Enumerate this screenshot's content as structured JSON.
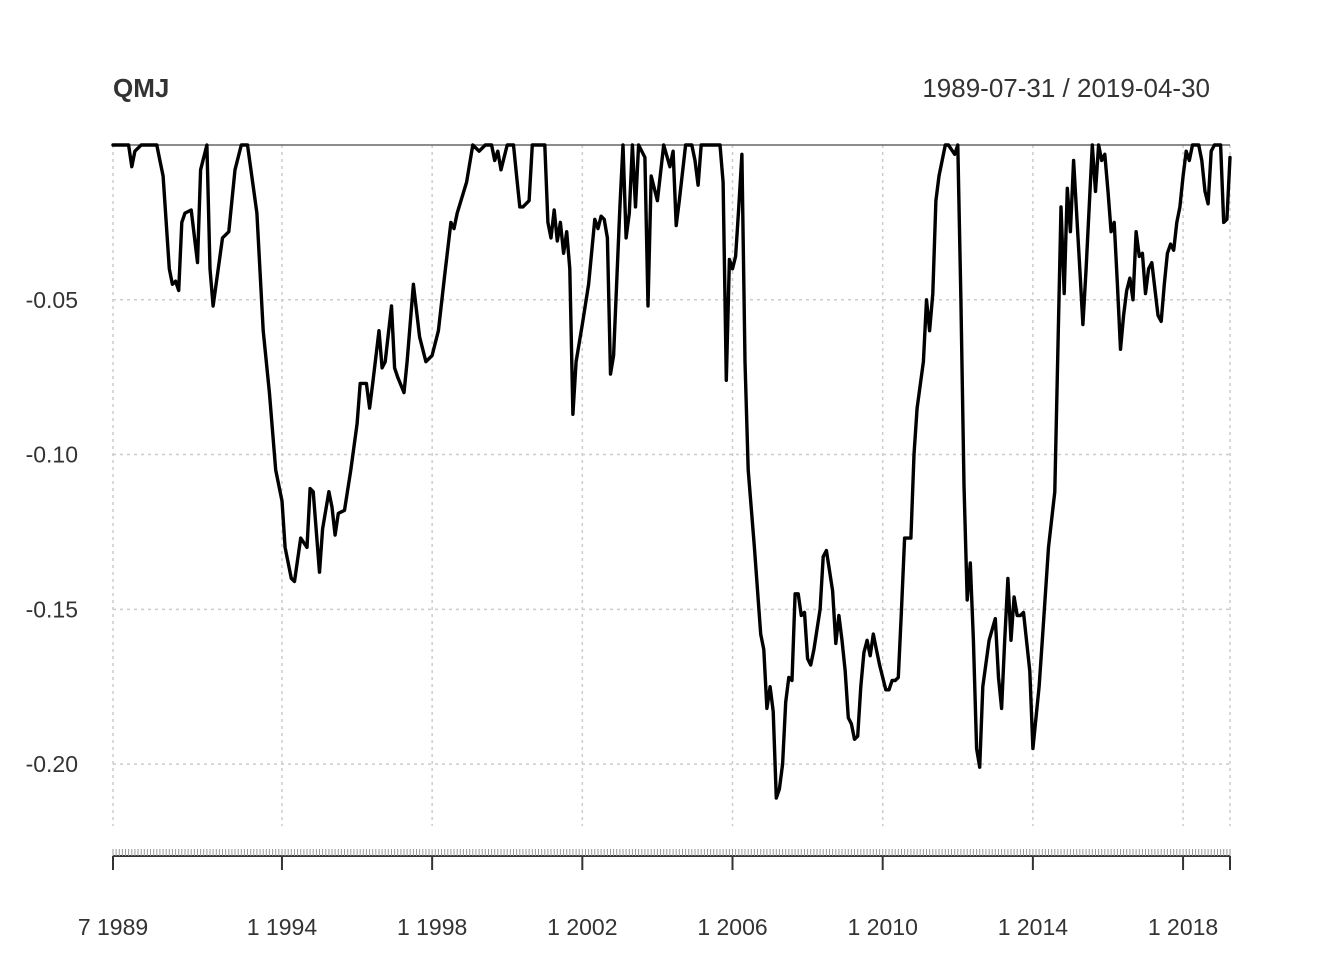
{
  "chart_data": {
    "type": "line",
    "title": "QMJ",
    "date_range_label": "1989-07-31 / 2019-04-30",
    "xlabel": "",
    "ylabel": "",
    "start_date": "1989-07-31",
    "end_date": "2019-04-30",
    "frequency": "monthly",
    "ylim": [
      -0.22,
      0
    ],
    "y_ticks": [
      -0.05,
      -0.1,
      -0.15,
      -0.2
    ],
    "y_tick_labels": [
      "-0.05",
      "-0.10",
      "-0.15",
      "-0.20"
    ],
    "x_ticks": [
      "1989-07-31",
      "1994-01-31",
      "1998-01-31",
      "2002-01-31",
      "2006-01-31",
      "2010-01-31",
      "2014-01-31",
      "2018-01-31"
    ],
    "x_tick_labels": [
      "7 1989",
      "1 1994",
      "1 1998",
      "1 2002",
      "1 2006",
      "1 2010",
      "1 2014",
      "1 2018"
    ],
    "grid": true,
    "series": [
      {
        "color": "#000000",
        "points": [
          [
            "1989-07",
            0.0
          ],
          [
            "1989-12",
            0.0
          ],
          [
            "1990-01",
            -0.007
          ],
          [
            "1990-02",
            -0.002
          ],
          [
            "1990-04",
            0.0
          ],
          [
            "1990-09",
            0.0
          ],
          [
            "1990-10",
            -0.005
          ],
          [
            "1990-11",
            -0.01
          ],
          [
            "1991-01",
            -0.04
          ],
          [
            "1991-02",
            -0.045
          ],
          [
            "1991-03",
            -0.044
          ],
          [
            "1991-04",
            -0.047
          ],
          [
            "1991-05",
            -0.025
          ],
          [
            "1991-06",
            -0.022
          ],
          [
            "1991-08",
            -0.021
          ],
          [
            "1991-10",
            -0.038
          ],
          [
            "1991-11",
            -0.008
          ],
          [
            "1992-01",
            0.0
          ],
          [
            "1992-02",
            -0.04
          ],
          [
            "1992-03",
            -0.052
          ],
          [
            "1992-06",
            -0.03
          ],
          [
            "1992-08",
            -0.028
          ],
          [
            "1992-10",
            -0.008
          ],
          [
            "1992-12",
            0.0
          ],
          [
            "1993-02",
            0.0
          ],
          [
            "1993-05",
            -0.022
          ],
          [
            "1993-07",
            -0.06
          ],
          [
            "1993-09",
            -0.08
          ],
          [
            "1993-11",
            -0.105
          ],
          [
            "1994-01",
            -0.115
          ],
          [
            "1994-02",
            -0.13
          ],
          [
            "1994-04",
            -0.14
          ],
          [
            "1994-05",
            -0.141
          ],
          [
            "1994-07",
            -0.127
          ],
          [
            "1994-09",
            -0.13
          ],
          [
            "1994-10",
            -0.111
          ],
          [
            "1994-11",
            -0.112
          ],
          [
            "1995-01",
            -0.138
          ],
          [
            "1995-02",
            -0.124
          ],
          [
            "1995-04",
            -0.112
          ],
          [
            "1995-05",
            -0.117
          ],
          [
            "1995-06",
            -0.126
          ],
          [
            "1995-07",
            -0.119
          ],
          [
            "1995-09",
            -0.118
          ],
          [
            "1995-11",
            -0.105
          ],
          [
            "1996-01",
            -0.09
          ],
          [
            "1996-02",
            -0.077
          ],
          [
            "1996-04",
            -0.077
          ],
          [
            "1996-05",
            -0.085
          ],
          [
            "1996-06",
            -0.077
          ],
          [
            "1996-08",
            -0.06
          ],
          [
            "1996-09",
            -0.072
          ],
          [
            "1996-10",
            -0.07
          ],
          [
            "1996-12",
            -0.052
          ],
          [
            "1997-01",
            -0.072
          ],
          [
            "1997-02",
            -0.075
          ],
          [
            "1997-04",
            -0.08
          ],
          [
            "1997-05",
            -0.07
          ],
          [
            "1997-07",
            -0.045
          ],
          [
            "1997-09",
            -0.062
          ],
          [
            "1997-11",
            -0.07
          ],
          [
            "1998-01",
            -0.068
          ],
          [
            "1998-03",
            -0.06
          ],
          [
            "1998-05",
            -0.042
          ],
          [
            "1998-07",
            -0.025
          ],
          [
            "1998-08",
            -0.027
          ],
          [
            "1998-09",
            -0.022
          ],
          [
            "1998-12",
            -0.012
          ],
          [
            "1999-02",
            0.0
          ],
          [
            "1999-04",
            -0.002
          ],
          [
            "1999-06",
            0.0
          ],
          [
            "1999-08",
            0.0
          ],
          [
            "1999-09",
            -0.005
          ],
          [
            "1999-10",
            -0.002
          ],
          [
            "1999-11",
            -0.008
          ],
          [
            "2000-01",
            0.0
          ],
          [
            "2000-03",
            0.0
          ],
          [
            "2000-04",
            -0.01
          ],
          [
            "2000-05",
            -0.02
          ],
          [
            "2000-06",
            -0.02
          ],
          [
            "2000-08",
            -0.018
          ],
          [
            "2000-09",
            0.0
          ],
          [
            "2000-11",
            0.0
          ],
          [
            "2001-01",
            0.0
          ],
          [
            "2001-02",
            -0.025
          ],
          [
            "2001-03",
            -0.03
          ],
          [
            "2001-04",
            -0.021
          ],
          [
            "2001-05",
            -0.031
          ],
          [
            "2001-06",
            -0.025
          ],
          [
            "2001-07",
            -0.035
          ],
          [
            "2001-08",
            -0.028
          ],
          [
            "2001-09",
            -0.04
          ],
          [
            "2001-10",
            -0.087
          ],
          [
            "2001-11",
            -0.07
          ],
          [
            "2002-01",
            -0.058
          ],
          [
            "2002-03",
            -0.045
          ],
          [
            "2002-05",
            -0.024
          ],
          [
            "2002-06",
            -0.027
          ],
          [
            "2002-07",
            -0.023
          ],
          [
            "2002-08",
            -0.024
          ],
          [
            "2002-09",
            -0.03
          ],
          [
            "2002-10",
            -0.074
          ],
          [
            "2002-11",
            -0.068
          ],
          [
            "2003-01",
            -0.02
          ],
          [
            "2003-02",
            0.0
          ],
          [
            "2003-03",
            -0.03
          ],
          [
            "2003-04",
            -0.022
          ],
          [
            "2003-05",
            0.0
          ],
          [
            "2003-06",
            -0.02
          ],
          [
            "2003-07",
            0.0
          ],
          [
            "2003-09",
            -0.004
          ],
          [
            "2003-10",
            -0.052
          ],
          [
            "2003-11",
            -0.01
          ],
          [
            "2004-01",
            -0.018
          ],
          [
            "2004-03",
            0.0
          ],
          [
            "2004-05",
            -0.007
          ],
          [
            "2004-06",
            -0.002
          ],
          [
            "2004-07",
            -0.026
          ],
          [
            "2004-08",
            -0.018
          ],
          [
            "2004-10",
            0.0
          ],
          [
            "2004-12",
            0.0
          ],
          [
            "2005-01",
            -0.005
          ],
          [
            "2005-02",
            -0.013
          ],
          [
            "2005-03",
            0.0
          ],
          [
            "2005-05",
            0.0
          ],
          [
            "2005-07",
            0.0
          ],
          [
            "2005-09",
            0.0
          ],
          [
            "2005-10",
            -0.012
          ],
          [
            "2005-11",
            -0.076
          ],
          [
            "2005-12",
            -0.037
          ],
          [
            "2006-01",
            -0.04
          ],
          [
            "2006-02",
            -0.036
          ],
          [
            "2006-03",
            -0.02
          ],
          [
            "2006-04",
            -0.003
          ],
          [
            "2006-05",
            -0.07
          ],
          [
            "2006-06",
            -0.105
          ],
          [
            "2006-08",
            -0.13
          ],
          [
            "2006-10",
            -0.158
          ],
          [
            "2006-11",
            -0.163
          ],
          [
            "2006-12",
            -0.182
          ],
          [
            "2007-01",
            -0.175
          ],
          [
            "2007-02",
            -0.183
          ],
          [
            "2007-03",
            -0.211
          ],
          [
            "2007-04",
            -0.208
          ],
          [
            "2007-05",
            -0.2
          ],
          [
            "2007-06",
            -0.18
          ],
          [
            "2007-07",
            -0.172
          ],
          [
            "2007-08",
            -0.173
          ],
          [
            "2007-09",
            -0.145
          ],
          [
            "2007-10",
            -0.145
          ],
          [
            "2007-11",
            -0.152
          ],
          [
            "2007-12",
            -0.151
          ],
          [
            "2008-01",
            -0.166
          ],
          [
            "2008-02",
            -0.168
          ],
          [
            "2008-03",
            -0.163
          ],
          [
            "2008-05",
            -0.15
          ],
          [
            "2008-06",
            -0.133
          ],
          [
            "2008-07",
            -0.131
          ],
          [
            "2008-09",
            -0.144
          ],
          [
            "2008-10",
            -0.161
          ],
          [
            "2008-11",
            -0.152
          ],
          [
            "2008-12",
            -0.16
          ],
          [
            "2009-01",
            -0.17
          ],
          [
            "2009-02",
            -0.185
          ],
          [
            "2009-03",
            -0.187
          ],
          [
            "2009-04",
            -0.192
          ],
          [
            "2009-05",
            -0.191
          ],
          [
            "2009-06",
            -0.175
          ],
          [
            "2009-07",
            -0.164
          ],
          [
            "2009-08",
            -0.16
          ],
          [
            "2009-09",
            -0.165
          ],
          [
            "2009-10",
            -0.158
          ],
          [
            "2009-11",
            -0.163
          ],
          [
            "2009-12",
            -0.168
          ],
          [
            "2010-02",
            -0.176
          ],
          [
            "2010-03",
            -0.176
          ],
          [
            "2010-04",
            -0.173
          ],
          [
            "2010-05",
            -0.173
          ],
          [
            "2010-06",
            -0.172
          ],
          [
            "2010-07",
            -0.15
          ],
          [
            "2010-08",
            -0.127
          ],
          [
            "2010-09",
            -0.127
          ],
          [
            "2010-10",
            -0.127
          ],
          [
            "2010-11",
            -0.1
          ],
          [
            "2010-12",
            -0.085
          ],
          [
            "2011-02",
            -0.07
          ],
          [
            "2011-03",
            -0.05
          ],
          [
            "2011-04",
            -0.06
          ],
          [
            "2011-05",
            -0.048
          ],
          [
            "2011-06",
            -0.018
          ],
          [
            "2011-07",
            -0.01
          ],
          [
            "2011-09",
            0.0
          ],
          [
            "2011-10",
            0.0
          ],
          [
            "2011-12",
            -0.003
          ],
          [
            "2012-01",
            0.0
          ],
          [
            "2012-02",
            -0.05
          ],
          [
            "2012-03",
            -0.11
          ],
          [
            "2012-04",
            -0.147
          ],
          [
            "2012-05",
            -0.135
          ],
          [
            "2012-06",
            -0.16
          ],
          [
            "2012-07",
            -0.195
          ],
          [
            "2012-08",
            -0.201
          ],
          [
            "2012-09",
            -0.175
          ],
          [
            "2012-11",
            -0.16
          ],
          [
            "2013-01",
            -0.153
          ],
          [
            "2013-02",
            -0.172
          ],
          [
            "2013-03",
            -0.182
          ],
          [
            "2013-04",
            -0.16
          ],
          [
            "2013-05",
            -0.14
          ],
          [
            "2013-06",
            -0.16
          ],
          [
            "2013-07",
            -0.146
          ],
          [
            "2013-08",
            -0.152
          ],
          [
            "2013-09",
            -0.152
          ],
          [
            "2013-10",
            -0.151
          ],
          [
            "2013-12",
            -0.17
          ],
          [
            "2014-01",
            -0.195
          ],
          [
            "2014-03",
            -0.175
          ],
          [
            "2014-04",
            -0.16
          ],
          [
            "2014-06",
            -0.13
          ],
          [
            "2014-08",
            -0.112
          ],
          [
            "2014-10",
            -0.02
          ],
          [
            "2014-11",
            -0.048
          ],
          [
            "2014-12",
            -0.014
          ],
          [
            "2015-01",
            -0.028
          ],
          [
            "2015-02",
            -0.005
          ],
          [
            "2015-04",
            -0.04
          ],
          [
            "2015-05",
            -0.058
          ],
          [
            "2015-06",
            -0.04
          ],
          [
            "2015-08",
            0.0
          ],
          [
            "2015-09",
            -0.015
          ],
          [
            "2015-10",
            0.0
          ],
          [
            "2015-11",
            -0.005
          ],
          [
            "2015-12",
            -0.003
          ],
          [
            "2016-01",
            -0.015
          ],
          [
            "2016-02",
            -0.028
          ],
          [
            "2016-03",
            -0.025
          ],
          [
            "2016-04",
            -0.045
          ],
          [
            "2016-05",
            -0.066
          ],
          [
            "2016-06",
            -0.055
          ],
          [
            "2016-07",
            -0.047
          ],
          [
            "2016-08",
            -0.043
          ],
          [
            "2016-09",
            -0.05
          ],
          [
            "2016-10",
            -0.028
          ],
          [
            "2016-11",
            -0.036
          ],
          [
            "2016-12",
            -0.035
          ],
          [
            "2017-01",
            -0.048
          ],
          [
            "2017-02",
            -0.04
          ],
          [
            "2017-03",
            -0.038
          ],
          [
            "2017-05",
            -0.055
          ],
          [
            "2017-06",
            -0.057
          ],
          [
            "2017-07",
            -0.045
          ],
          [
            "2017-08",
            -0.035
          ],
          [
            "2017-09",
            -0.032
          ],
          [
            "2017-10",
            -0.034
          ],
          [
            "2017-11",
            -0.025
          ],
          [
            "2017-12",
            -0.02
          ],
          [
            "2018-01",
            -0.01
          ],
          [
            "2018-02",
            -0.002
          ],
          [
            "2018-03",
            -0.005
          ],
          [
            "2018-04",
            0.0
          ],
          [
            "2018-06",
            0.0
          ],
          [
            "2018-07",
            -0.005
          ],
          [
            "2018-08",
            -0.015
          ],
          [
            "2018-09",
            -0.019
          ],
          [
            "2018-10",
            -0.002
          ],
          [
            "2018-11",
            0.0
          ],
          [
            "2019-01",
            0.0
          ],
          [
            "2019-02",
            -0.025
          ],
          [
            "2019-03",
            -0.024
          ],
          [
            "2019-04",
            -0.004
          ]
        ]
      }
    ]
  }
}
